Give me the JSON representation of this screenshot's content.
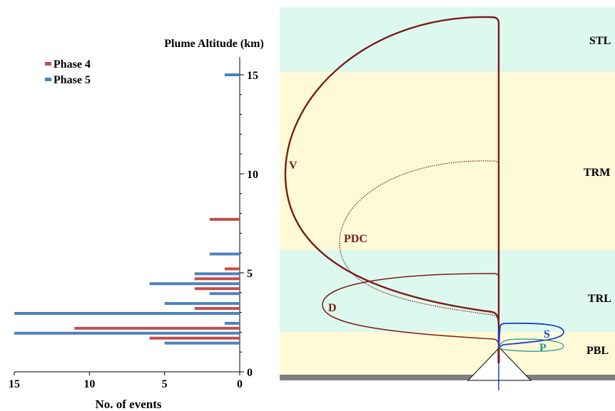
{
  "chart_data": [
    {
      "type": "bar",
      "orientation": "horizontal",
      "title": "Plume Altitude (km)",
      "xlabel": "No. of events",
      "ylabel": "",
      "xlim": [
        15,
        0
      ],
      "x_reversed": true,
      "ylim": [
        0,
        16
      ],
      "x_ticks": [
        15,
        10,
        5,
        0
      ],
      "y_ticks": [
        0,
        5,
        10,
        15
      ],
      "legend_position": "top-left",
      "series": [
        {
          "name": "Phase 4",
          "color": "#c0504d",
          "points": [
            {
              "altitude": 1.7,
              "events": 6
            },
            {
              "altitude": 2.2,
              "events": 11
            },
            {
              "altitude": 3.2,
              "events": 3
            },
            {
              "altitude": 4.2,
              "events": 3
            },
            {
              "altitude": 4.7,
              "events": 3
            },
            {
              "altitude": 5.2,
              "events": 1
            },
            {
              "altitude": 7.7,
              "events": 2
            }
          ]
        },
        {
          "name": "Phase 5",
          "color": "#4f81bd",
          "points": [
            {
              "altitude": 1.45,
              "events": 5
            },
            {
              "altitude": 1.95,
              "events": 15
            },
            {
              "altitude": 2.45,
              "events": 1
            },
            {
              "altitude": 2.95,
              "events": 15
            },
            {
              "altitude": 3.45,
              "events": 5
            },
            {
              "altitude": 3.95,
              "events": 2
            },
            {
              "altitude": 4.45,
              "events": 6
            },
            {
              "altitude": 4.95,
              "events": 3
            },
            {
              "altitude": 5.95,
              "events": 2
            },
            {
              "altitude": 15.0,
              "events": 1
            }
          ]
        }
      ]
    },
    {
      "type": "diagram",
      "layers": [
        {
          "label": "STL",
          "color": "#ddf8ee"
        },
        {
          "label": "TRM",
          "color": "#fefad8"
        },
        {
          "label": "TRL",
          "color": "#ddf8ee"
        },
        {
          "label": "PBL",
          "color": "#fefad8"
        }
      ],
      "plume_labels": [
        {
          "label": "V",
          "color": "#7b1a1a"
        },
        {
          "label": "PDC",
          "color": "#7b1a1a"
        },
        {
          "label": "D",
          "color": "#7b1a1a"
        },
        {
          "label": "S",
          "color": "#1f3fcf"
        },
        {
          "label": "P",
          "color": "#1a9a8a"
        }
      ],
      "ground_color": "#7f7f7f",
      "plume_color": "#7b1a1a",
      "vent_color": "#1f3fcf"
    }
  ]
}
